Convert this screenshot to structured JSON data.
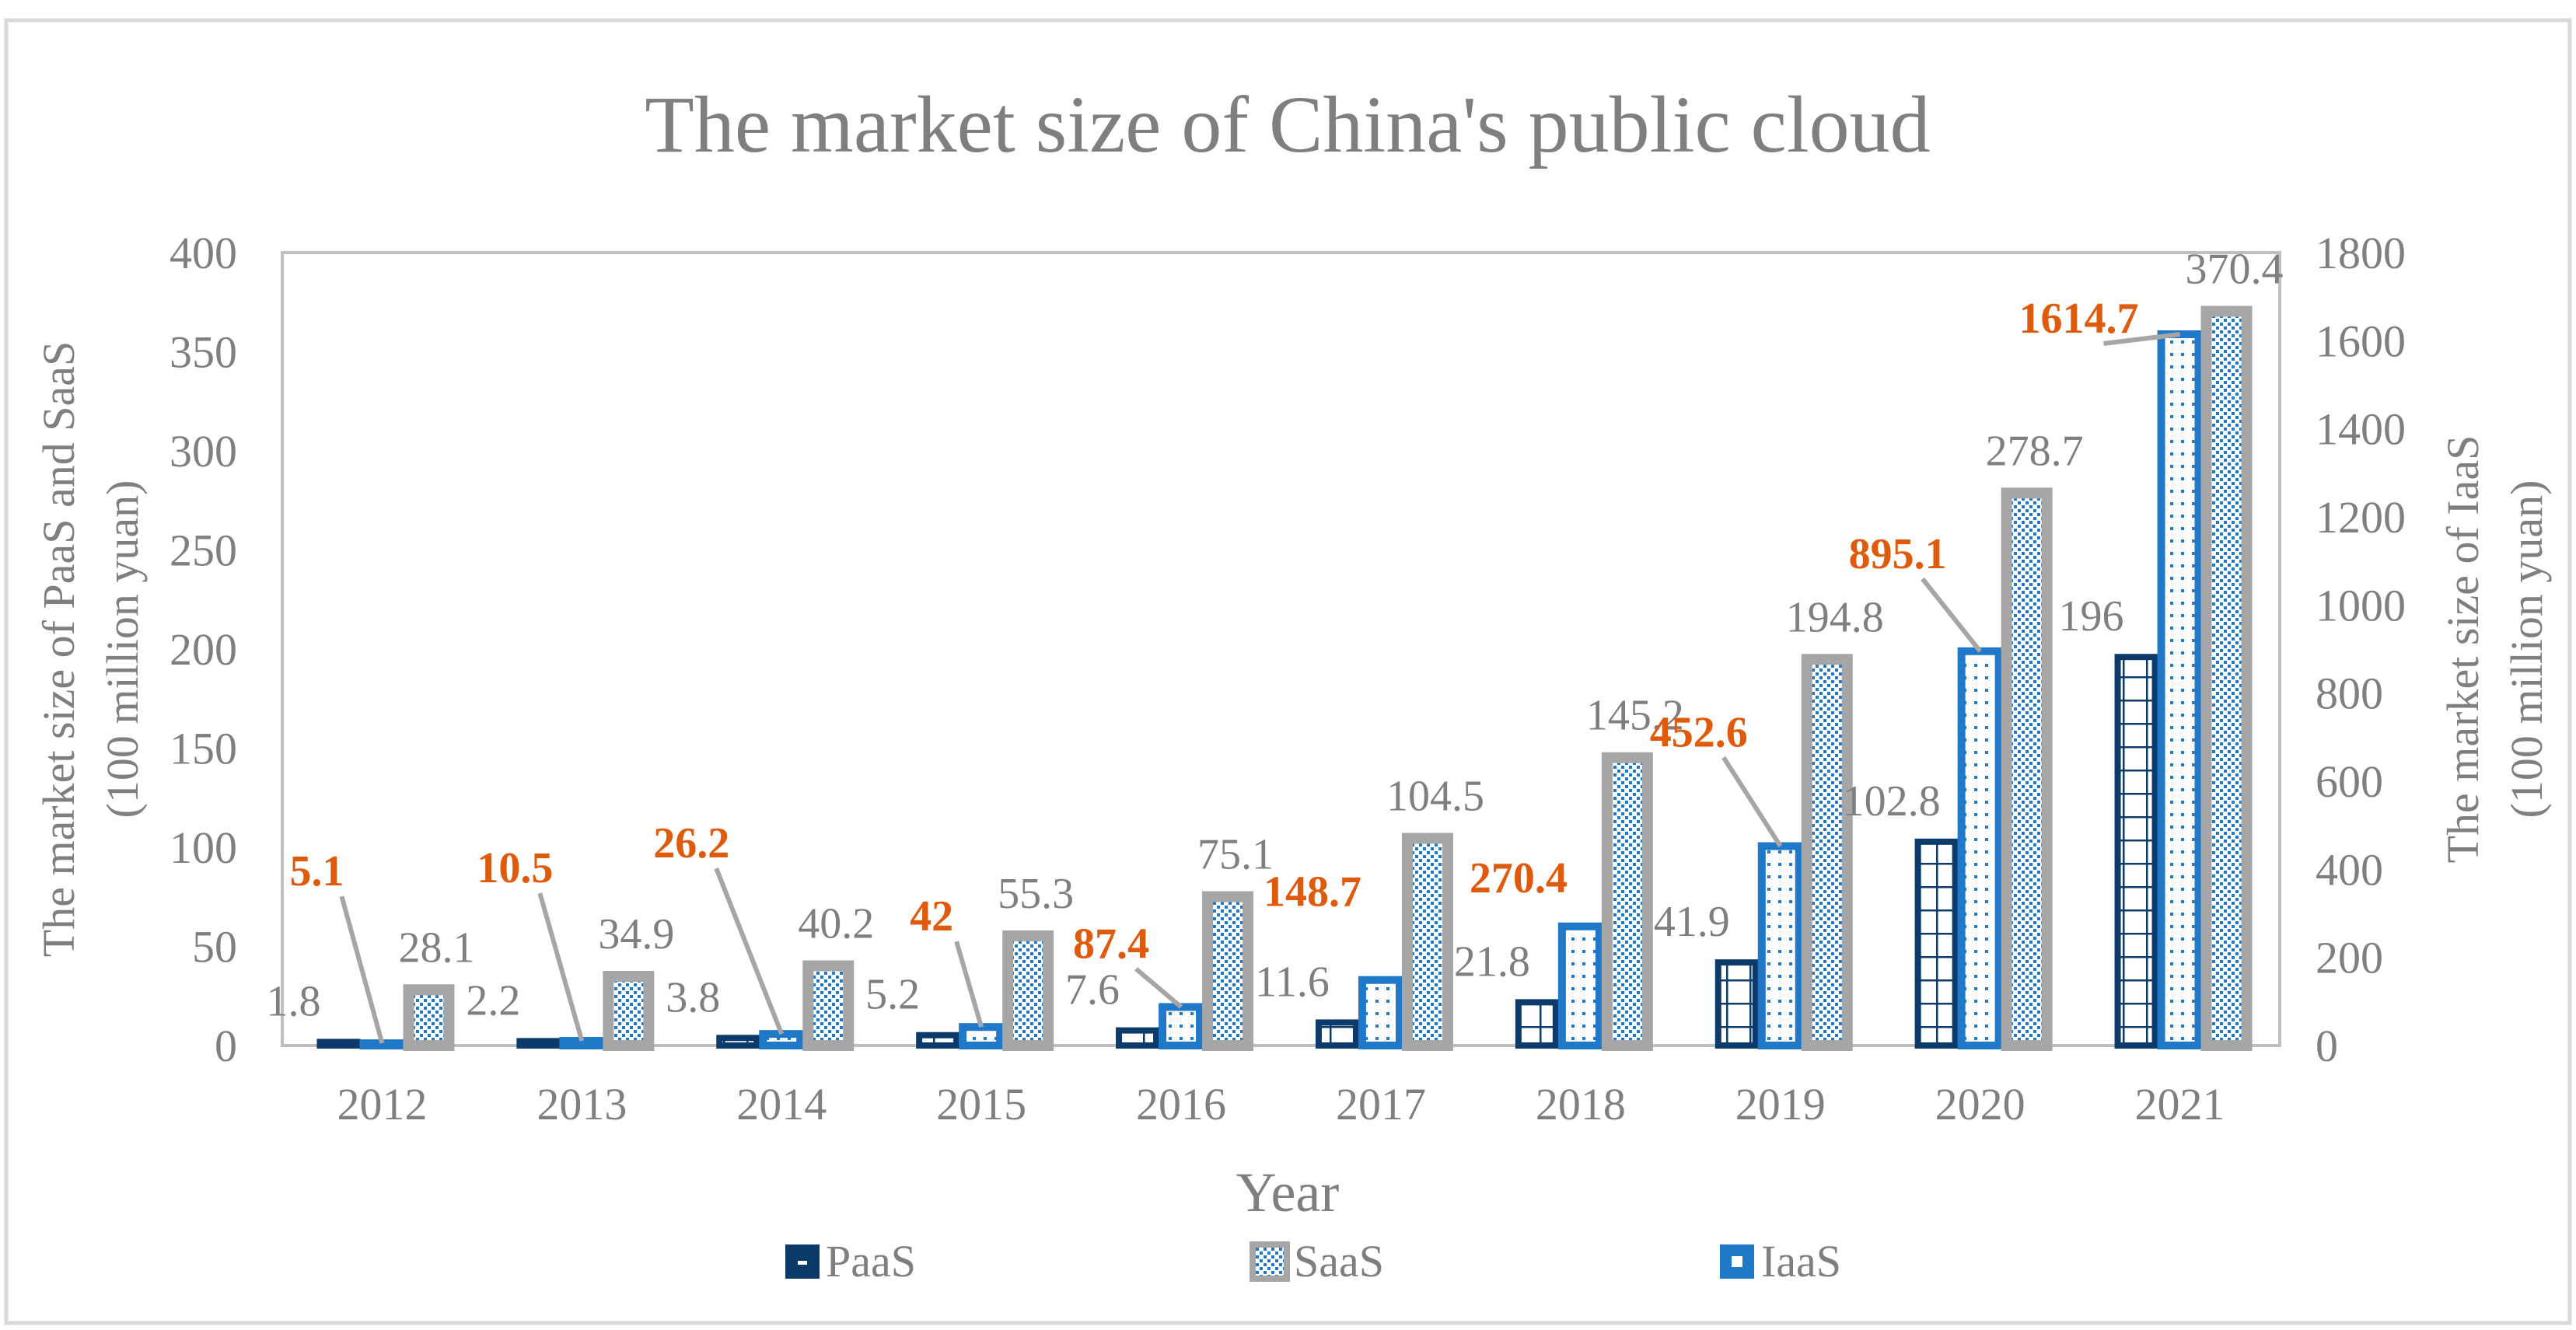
{
  "chart_data": {
    "type": "bar",
    "title": "The market size of China's public cloud",
    "xlabel": "Year",
    "ylabel_left_line1": "The market size of PaaS and SaaS",
    "ylabel_left_line2": "(100 million yuan)",
    "ylabel_right_line1": "The market size of IaaS",
    "ylabel_right_line2": "(100 million yuan)",
    "categories": [
      "2012",
      "2013",
      "2014",
      "2015",
      "2016",
      "2017",
      "2018",
      "2019",
      "2020",
      "2021"
    ],
    "y_left_range": [
      0,
      400
    ],
    "y_left_ticks": [
      "0",
      "50",
      "100",
      "150",
      "200",
      "250",
      "300",
      "350",
      "400"
    ],
    "y_right_range": [
      0,
      1800
    ],
    "y_right_ticks": [
      "0",
      "200",
      "400",
      "600",
      "800",
      "1000",
      "1200",
      "1400",
      "1600",
      "1800"
    ],
    "legend_position": "bottom",
    "series": [
      {
        "name": "PaaS",
        "axis": "left",
        "color": "#0b3a6b",
        "values": [
          1.8,
          2.2,
          3.8,
          5.2,
          7.6,
          11.6,
          21.8,
          41.9,
          102.8,
          196
        ],
        "labels": [
          "1.8",
          "2.2",
          "3.8",
          "5.2",
          "7.6",
          "11.6",
          "21.8",
          "41.9",
          "102.8",
          "196"
        ]
      },
      {
        "name": "SaaS",
        "axis": "left",
        "color": "#a6a6a6",
        "values": [
          28.1,
          34.9,
          40.2,
          55.3,
          75.1,
          104.5,
          145.2,
          194.8,
          278.7,
          370.4
        ],
        "labels": [
          "28.1",
          "34.9",
          "40.2",
          "55.3",
          "75.1",
          "104.5",
          "145.2",
          "194.8",
          "278.7",
          "370.4"
        ]
      },
      {
        "name": "IaaS",
        "axis": "right",
        "color": "#1f78c8",
        "label_color": "#e05a0c",
        "values": [
          5.1,
          10.5,
          26.2,
          42,
          87.4,
          148.7,
          270.4,
          452.6,
          895.1,
          1614.7
        ],
        "labels": [
          "5.1",
          "10.5",
          "26.2",
          "42",
          "87.4",
          "148.7",
          "270.4",
          "452.6",
          "895.1",
          "1614.7"
        ]
      }
    ]
  }
}
